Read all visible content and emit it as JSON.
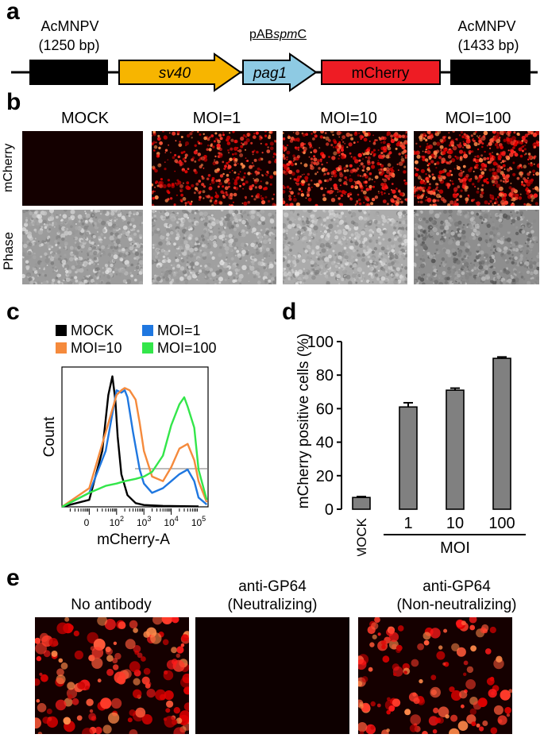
{
  "panel_a": {
    "label": "a",
    "left_arm_name": "AcMNPV",
    "left_arm_size": "(1250 bp)",
    "right_arm_name": "AcMNPV",
    "right_arm_size": "(1433 bp)",
    "construct_name": "pABspmC",
    "construct_prefix": "pAB",
    "construct_italic": "spm",
    "construct_suffix": "C",
    "segments": [
      {
        "label": "sv40",
        "color": "#f7b500",
        "italic": true
      },
      {
        "label": "pag1",
        "color": "#8ecae3",
        "italic": true
      },
      {
        "label": "mCherry",
        "color": "#ee1c24",
        "italic": false
      }
    ]
  },
  "panel_b": {
    "label": "b",
    "columns": [
      "MOCK",
      "MOI=1",
      "MOI=10",
      "MOI=100"
    ],
    "rows": [
      "mCherry",
      "Phase"
    ]
  },
  "panel_c": {
    "label": "c",
    "xlabel": "mCherry-A",
    "ylabel": "Count",
    "legend": [
      {
        "name": "MOCK",
        "color": "#000000"
      },
      {
        "name": "MOI=1",
        "color": "#1f77e0"
      },
      {
        "name": "MOI=10",
        "color": "#f58a3c"
      },
      {
        "name": "MOI=100",
        "color": "#33e64a"
      }
    ],
    "x_tick_base": "10",
    "x_ticks": [
      "0",
      "2",
      "3",
      "4",
      "5"
    ]
  },
  "panel_d": {
    "label": "d",
    "xlabel": "MOI",
    "ylabel": "mCherry positive cells (%)",
    "bar_color": "#808080"
  },
  "chart_data": [
    {
      "type": "bar",
      "categories": [
        "MOCK",
        "1",
        "10",
        "100"
      ],
      "values": [
        7,
        61,
        71,
        90
      ],
      "errors": [
        0.5,
        2.5,
        1.2,
        0.8
      ],
      "xlabel": "MOI",
      "ylabel": "mCherry positive cells (%)",
      "ylim": [
        0,
        100
      ],
      "yticks": [
        0,
        20,
        40,
        60,
        80,
        100
      ],
      "grid": false
    },
    {
      "type": "line",
      "xlabel": "mCherry-A",
      "ylabel": "Count",
      "x_scale": "log",
      "legend_position": "top",
      "series": [
        {
          "name": "MOCK",
          "color": "#000000",
          "x": [
            1,
            10,
            30,
            50,
            70,
            90,
            110,
            150,
            250,
            500,
            1000,
            5000,
            100000
          ],
          "y": [
            0,
            15,
            120,
            240,
            280,
            230,
            150,
            70,
            25,
            8,
            4,
            2,
            1
          ]
        },
        {
          "name": "MOI=1",
          "color": "#1f77e0",
          "x": [
            1,
            10,
            40,
            100,
            150,
            200,
            250,
            400,
            700,
            1000,
            2000,
            5000,
            10000,
            20000,
            40000,
            70000,
            100000,
            200000
          ],
          "y": [
            0,
            30,
            120,
            250,
            245,
            250,
            235,
            160,
            80,
            50,
            30,
            40,
            55,
            70,
            80,
            55,
            20,
            5
          ]
        },
        {
          "name": "MOI=10",
          "color": "#f58a3c",
          "x": [
            1,
            10,
            40,
            100,
            150,
            200,
            300,
            500,
            700,
            1000,
            2000,
            5000,
            10000,
            20000,
            40000,
            70000,
            100000,
            200000
          ],
          "y": [
            0,
            40,
            160,
            240,
            250,
            255,
            250,
            230,
            180,
            120,
            65,
            55,
            85,
            125,
            135,
            100,
            55,
            10
          ]
        },
        {
          "name": "MOI=100",
          "color": "#33e64a",
          "x": [
            1,
            10,
            40,
            100,
            200,
            500,
            1000,
            2000,
            5000,
            10000,
            20000,
            30000,
            40000,
            70000,
            100000,
            200000
          ],
          "y": [
            0,
            30,
            45,
            50,
            55,
            60,
            65,
            75,
            110,
            175,
            220,
            235,
            215,
            170,
            80,
            15
          ]
        }
      ]
    }
  ],
  "panel_e": {
    "label": "e",
    "images": [
      {
        "line1": "No antibody",
        "line2": ""
      },
      {
        "line1": "anti-GP64",
        "line2": "(Neutralizing)"
      },
      {
        "line1": "anti-GP64",
        "line2": "(Non-neutralizing)"
      }
    ]
  }
}
